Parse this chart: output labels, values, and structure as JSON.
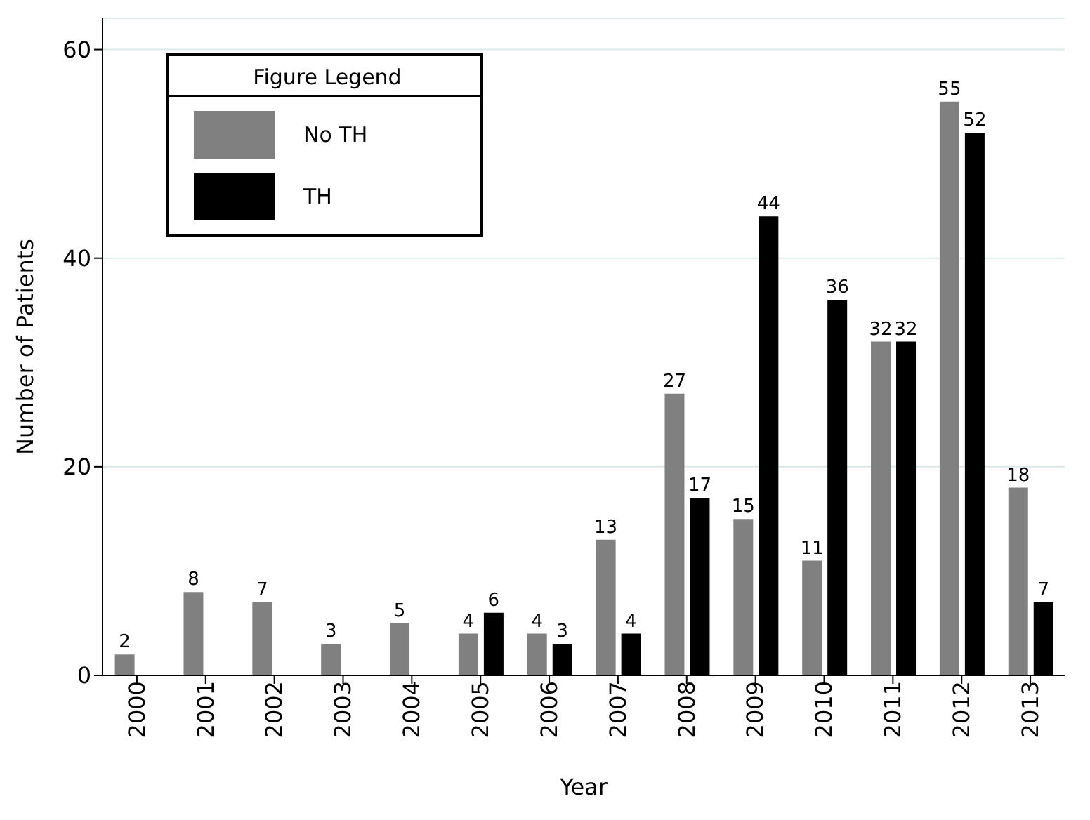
{
  "chart_data": {
    "type": "bar",
    "xlabel": "Year",
    "ylabel": "Number of Patients",
    "legend_title": "Figure Legend",
    "categories": [
      "2000",
      "2001",
      "2002",
      "2003",
      "2004",
      "2005",
      "2006",
      "2007",
      "2008",
      "2009",
      "2010",
      "2011",
      "2012",
      "2013"
    ],
    "series": [
      {
        "name": "No TH",
        "color": "#808080",
        "values": [
          2,
          8,
          7,
          3,
          5,
          4,
          4,
          13,
          27,
          15,
          11,
          32,
          55,
          18
        ]
      },
      {
        "name": "TH",
        "color": "#000000",
        "values": [
          null,
          null,
          null,
          null,
          null,
          6,
          3,
          4,
          17,
          44,
          36,
          32,
          52,
          7
        ]
      }
    ],
    "ylim": [
      0,
      63
    ],
    "yticks": [
      0,
      20,
      40,
      60
    ],
    "grid": "y",
    "legend": "top left",
    "data_labels": true
  }
}
